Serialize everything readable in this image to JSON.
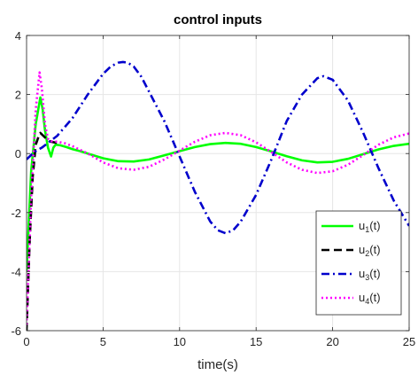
{
  "chart_data": {
    "type": "line",
    "title": "control inputs",
    "xlabel": "time(s)",
    "ylabel": "",
    "xlim": [
      0,
      25
    ],
    "ylim": [
      -6,
      4
    ],
    "xticks": [
      0,
      5,
      10,
      15,
      20,
      25
    ],
    "yticks": [
      -6,
      -4,
      -2,
      0,
      2,
      4
    ],
    "grid": true,
    "legend_position": "lower-right",
    "series": [
      {
        "name_main": "u",
        "name_sub": "1",
        "name_tail": "(t)",
        "color": "#00ff00",
        "style": "solid",
        "x": [
          0,
          0.3,
          0.6,
          0.9,
          1.05,
          1.2,
          1.4,
          1.6,
          1.75,
          1.9,
          2.2,
          2.6,
          3,
          3.5,
          4,
          5,
          6,
          7,
          8,
          9,
          10,
          11,
          12,
          13,
          14,
          15,
          16,
          17,
          18,
          19,
          20,
          21,
          22,
          23,
          24,
          25
        ],
        "y": [
          -4.0,
          -0.6,
          1.0,
          1.9,
          1.5,
          0.8,
          0.2,
          -0.1,
          0.2,
          0.3,
          0.28,
          0.22,
          0.15,
          0.08,
          0.0,
          -0.16,
          -0.26,
          -0.27,
          -0.2,
          -0.06,
          0.08,
          0.22,
          0.32,
          0.36,
          0.33,
          0.22,
          0.07,
          -0.09,
          -0.23,
          -0.3,
          -0.28,
          -0.18,
          -0.02,
          0.14,
          0.26,
          0.33
        ]
      },
      {
        "name_main": "u",
        "name_sub": "2",
        "name_tail": "(t)",
        "color": "#000000",
        "style": "dashed",
        "x": [
          0,
          0.2,
          0.4,
          0.6,
          0.8,
          0.9,
          1.0,
          1.2,
          1.4,
          1.6,
          1.8,
          2.0
        ],
        "y": [
          -6.0,
          -3.0,
          -0.8,
          0.3,
          0.6,
          0.7,
          0.65,
          0.55,
          0.45,
          0.4,
          0.38,
          0.36
        ]
      },
      {
        "name_main": "u",
        "name_sub": "3",
        "name_tail": "(t)",
        "color": "#0000cc",
        "style": "dashdot",
        "x": [
          0,
          0.5,
          1,
          1.5,
          2,
          3,
          4,
          5,
          5.5,
          6,
          6.3,
          6.6,
          7,
          7.5,
          8,
          9,
          10,
          11,
          12,
          12.5,
          13,
          13.5,
          14,
          15,
          16,
          17,
          18,
          19,
          19.4,
          20,
          21,
          22,
          23,
          24,
          25
        ],
        "y": [
          -0.2,
          0.05,
          0.2,
          0.4,
          0.6,
          1.2,
          2.0,
          2.7,
          2.95,
          3.08,
          3.1,
          3.08,
          2.95,
          2.6,
          2.1,
          1.1,
          -0.1,
          -1.3,
          -2.3,
          -2.6,
          -2.7,
          -2.6,
          -2.3,
          -1.4,
          -0.2,
          1.1,
          2.0,
          2.55,
          2.62,
          2.5,
          1.8,
          0.7,
          -0.5,
          -1.6,
          -2.45
        ]
      },
      {
        "name_main": "u",
        "name_sub": "4",
        "name_tail": "(t)",
        "color": "#ff00ff",
        "style": "dotted",
        "x": [
          0,
          0.3,
          0.6,
          0.85,
          1.0,
          1.2,
          1.4,
          1.6,
          2,
          2.5,
          3,
          4,
          5,
          6,
          7,
          8,
          9,
          10,
          11,
          12,
          13,
          14,
          15,
          16,
          17,
          18,
          19,
          20,
          21,
          22,
          23,
          24,
          25
        ],
        "y": [
          -5.8,
          -1.5,
          1.5,
          2.75,
          2.2,
          1.0,
          0.5,
          0.42,
          0.4,
          0.35,
          0.25,
          0.0,
          -0.3,
          -0.5,
          -0.55,
          -0.45,
          -0.2,
          0.1,
          0.4,
          0.62,
          0.7,
          0.62,
          0.38,
          0.05,
          -0.3,
          -0.55,
          -0.66,
          -0.6,
          -0.38,
          -0.05,
          0.3,
          0.55,
          0.68
        ]
      }
    ]
  }
}
